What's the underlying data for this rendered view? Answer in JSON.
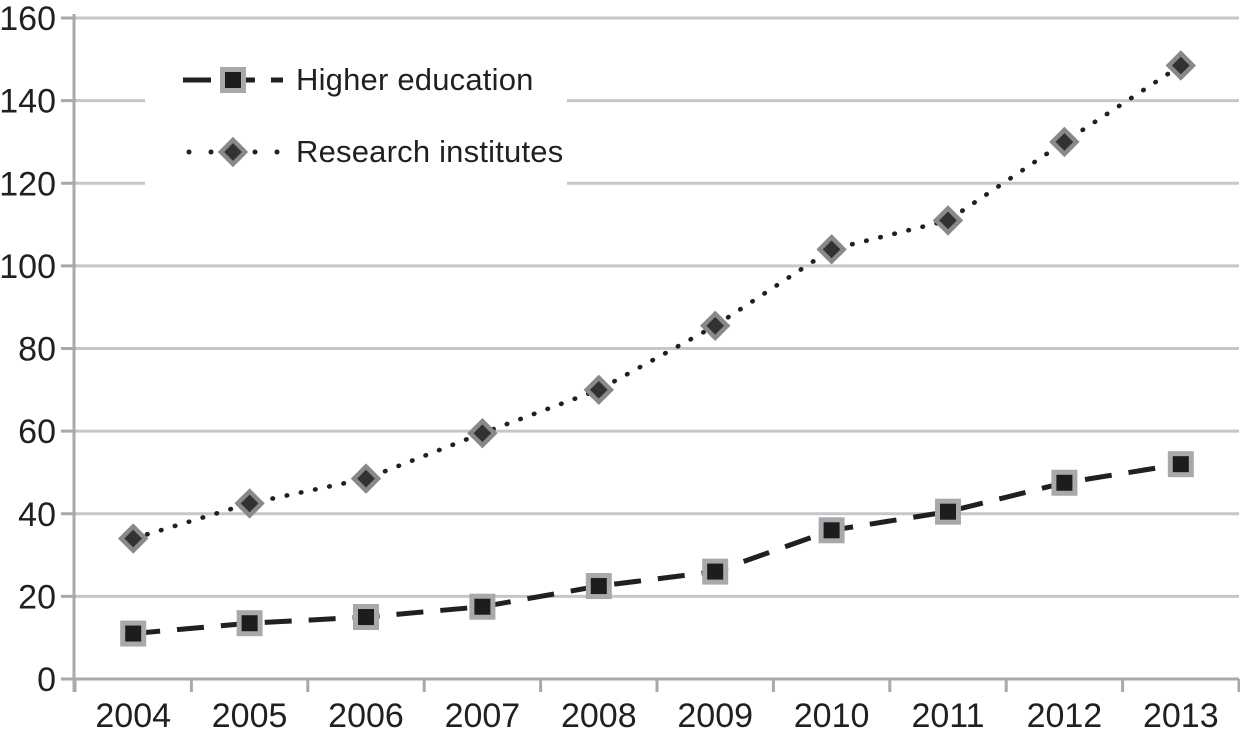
{
  "chart_data": {
    "type": "line",
    "title": "",
    "xlabel": "",
    "ylabel": "",
    "categories": [
      "2004",
      "2005",
      "2006",
      "2007",
      "2008",
      "2009",
      "2010",
      "2011",
      "2012",
      "2013"
    ],
    "series": [
      {
        "name": "Higher education",
        "line_style": "dashed",
        "marker": "square",
        "values": [
          11,
          13.5,
          15,
          17.5,
          22.5,
          26,
          36,
          40.5,
          47.5,
          52
        ]
      },
      {
        "name": "Research institutes",
        "line_style": "dotted",
        "marker": "diamond",
        "values": [
          34,
          42.5,
          48.5,
          59.5,
          70,
          85.5,
          104,
          111,
          130,
          148.5
        ]
      }
    ],
    "ylim": [
      0,
      160
    ],
    "yticks": [
      0,
      20,
      40,
      60,
      80,
      100,
      120,
      140,
      160
    ],
    "grid": true,
    "legend_position": "top-left"
  },
  "colors": {
    "text": "#231f20",
    "line": "#231f20",
    "square_fill": "#1f1c1d",
    "square_border": "#a7a9ac",
    "diamond_fill": "#333132",
    "diamond_border": "#87898c",
    "grid": "#c6c7c9",
    "axis": "#a7a9ac",
    "background": "#ffffff"
  }
}
